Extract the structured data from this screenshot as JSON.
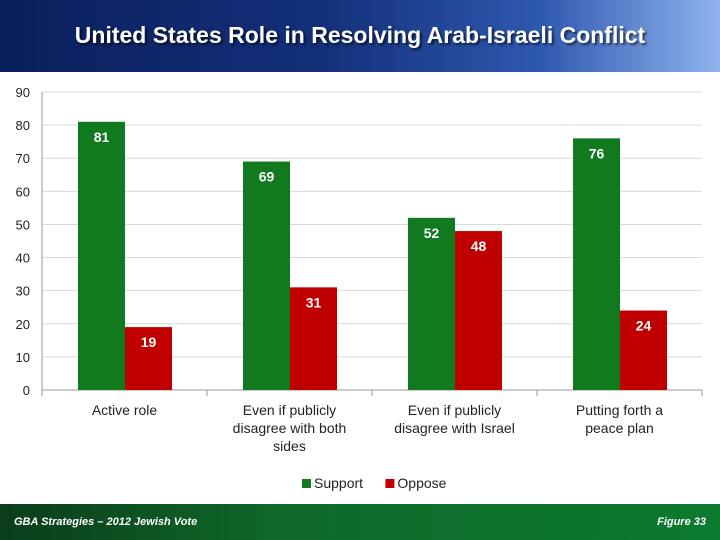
{
  "header": {
    "title": "United States Role in Resolving Arab-Israeli Conflict"
  },
  "footer": {
    "left": "GBA Strategies – 2012 Jewish Vote",
    "right": "Figure  33"
  },
  "colors": {
    "support": "#117a1f",
    "oppose": "#c00000"
  },
  "chart_data": {
    "type": "bar",
    "categories": [
      [
        "Active role"
      ],
      [
        "Even if publicly",
        "disagree with both",
        "sides"
      ],
      [
        "Even if publicly",
        "disagree  with Israel"
      ],
      [
        "Putting forth a",
        "peace plan"
      ]
    ],
    "series": [
      {
        "name": "Support",
        "values": [
          81,
          69,
          52,
          76
        ]
      },
      {
        "name": "Oppose",
        "values": [
          19,
          31,
          48,
          24
        ]
      }
    ],
    "ylim": [
      0,
      90
    ],
    "yticks": [
      0,
      10,
      20,
      30,
      40,
      50,
      60,
      70,
      80,
      90
    ],
    "grid": true,
    "legend": "bottom-center"
  }
}
